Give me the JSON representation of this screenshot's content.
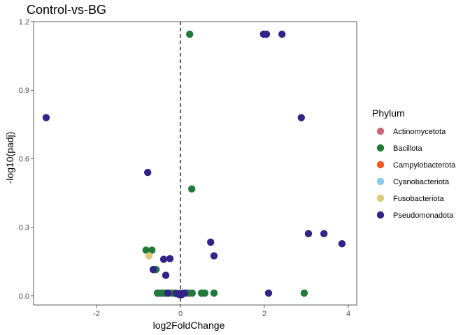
{
  "chart_data": {
    "type": "scatter",
    "title": "Control-vs-BG",
    "xlabel": "log2FoldChange",
    "ylabel": "-log10(padj)",
    "xlim": [
      -3.5,
      4.2
    ],
    "ylim": [
      -0.04,
      1.2
    ],
    "xticks": [
      -2,
      0,
      2,
      4
    ],
    "yticks": [
      0.0,
      0.3,
      0.6,
      0.9,
      1.2
    ],
    "xtick_labels": [
      "-2",
      "0",
      "2",
      "4"
    ],
    "ytick_labels": [
      "0.0",
      "0.3",
      "0.6",
      "0.9",
      "1.2"
    ],
    "vline": 0,
    "grid": false,
    "legend": {
      "title": "Phylum",
      "position": "right",
      "items": [
        {
          "name": "Actinomycetota",
          "color": "#CC6677"
        },
        {
          "name": "Bacillota",
          "color": "#217A3A"
        },
        {
          "name": "Campylobacterota",
          "color": "#F05A1E"
        },
        {
          "name": "Cyanobacteriota",
          "color": "#88CCEE"
        },
        {
          "name": "Fusobacteriota",
          "color": "#DDCC77"
        },
        {
          "name": "Pseudomonadota",
          "color": "#332288"
        }
      ]
    },
    "series": [
      {
        "name": "Bacillota",
        "points": [
          [
            0.22,
            1.145
          ],
          [
            0.27,
            0.468
          ],
          [
            -0.82,
            0.2
          ],
          [
            -0.68,
            0.2
          ],
          [
            -0.62,
            0.115
          ],
          [
            -0.58,
            0.115
          ],
          [
            -0.55,
            0.012
          ],
          [
            -0.48,
            0.012
          ],
          [
            -0.42,
            0.012
          ],
          [
            -0.35,
            0.012
          ],
          [
            -0.28,
            0.012
          ],
          [
            -0.2,
            0.012
          ],
          [
            -0.12,
            0.012
          ],
          [
            0.05,
            0.012
          ],
          [
            0.12,
            0.012
          ],
          [
            0.2,
            0.012
          ],
          [
            0.28,
            0.012
          ],
          [
            0.5,
            0.012
          ],
          [
            0.58,
            0.012
          ],
          [
            0.8,
            0.012
          ],
          [
            2.95,
            0.012
          ]
        ]
      },
      {
        "name": "Fusobacteriota",
        "points": [
          [
            -0.75,
            0.175
          ]
        ]
      },
      {
        "name": "Pseudomonadota",
        "points": [
          [
            -3.2,
            0.78
          ],
          [
            -0.78,
            0.54
          ],
          [
            1.98,
            1.145
          ],
          [
            2.05,
            1.145
          ],
          [
            2.42,
            1.145
          ],
          [
            2.88,
            0.78
          ],
          [
            0.72,
            0.235
          ],
          [
            0.8,
            0.175
          ],
          [
            3.05,
            0.272
          ],
          [
            3.42,
            0.272
          ],
          [
            3.85,
            0.228
          ],
          [
            -0.4,
            0.16
          ],
          [
            -0.25,
            0.163
          ],
          [
            -0.35,
            0.09
          ],
          [
            -0.65,
            0.115
          ],
          [
            2.1,
            0.012
          ],
          [
            -0.3,
            0.012
          ],
          [
            -0.1,
            0.01
          ],
          [
            -0.05,
            0.01
          ],
          [
            0.0,
            0.01
          ],
          [
            0.05,
            0.01
          ],
          [
            0.1,
            0.012
          ],
          [
            -0.02,
            0.005
          ],
          [
            0.03,
            0.005
          ]
        ]
      }
    ]
  }
}
